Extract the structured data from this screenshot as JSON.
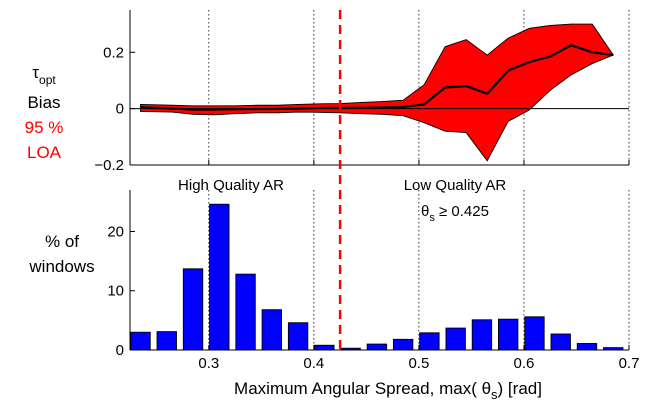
{
  "chart_data": [
    {
      "type": "line",
      "panel": "top",
      "ylabel_lines": [
        {
          "text": "τ",
          "sub": "opt",
          "color": "#000000"
        },
        {
          "text": "Bias",
          "color": "#000000"
        },
        {
          "text": "95 %",
          "color": "#ff0000"
        },
        {
          "text": "LOA",
          "color": "#ff0000"
        }
      ],
      "xlim": [
        0.225,
        0.7
      ],
      "ylim": [
        -0.2,
        0.35
      ],
      "yticks": [
        -0.2,
        0,
        0.2
      ],
      "ytick_labels": [
        "−0.2",
        "0",
        "0.2"
      ],
      "xgrid": [
        0.3,
        0.4,
        0.5,
        0.6,
        0.7
      ],
      "zero_line": true,
      "series": [
        {
          "role": "bias",
          "color": "#000000",
          "x": [
            0.235,
            0.265,
            0.285,
            0.305,
            0.325,
            0.345,
            0.365,
            0.385,
            0.405,
            0.425,
            0.445,
            0.465,
            0.485,
            0.505,
            0.525,
            0.545,
            0.565,
            0.585,
            0.605,
            0.625,
            0.645,
            0.665,
            0.685
          ],
          "values": [
            0.005,
            0.0,
            -0.003,
            -0.003,
            -0.002,
            -0.002,
            -0.001,
            0.0,
            0.002,
            0.003,
            0.003,
            0.004,
            0.006,
            0.015,
            0.075,
            0.08,
            0.053,
            0.135,
            0.165,
            0.185,
            0.225,
            0.2,
            0.19
          ]
        },
        {
          "role": "loa_band",
          "color": "#ff0000",
          "x": [
            0.235,
            0.265,
            0.285,
            0.305,
            0.325,
            0.345,
            0.365,
            0.385,
            0.405,
            0.425,
            0.445,
            0.465,
            0.485,
            0.505,
            0.525,
            0.545,
            0.565,
            0.585,
            0.605,
            0.625,
            0.645,
            0.665,
            0.685
          ],
          "upper": [
            0.015,
            0.012,
            0.01,
            0.01,
            0.01,
            0.012,
            0.012,
            0.015,
            0.017,
            0.018,
            0.022,
            0.025,
            0.03,
            0.085,
            0.22,
            0.245,
            0.19,
            0.25,
            0.285,
            0.295,
            0.3,
            0.3,
            0.19
          ],
          "lower": [
            -0.01,
            -0.012,
            -0.02,
            -0.022,
            -0.018,
            -0.015,
            -0.015,
            -0.012,
            -0.013,
            -0.015,
            -0.018,
            -0.02,
            -0.025,
            -0.05,
            -0.08,
            -0.085,
            -0.185,
            -0.045,
            -0.005,
            0.065,
            0.12,
            0.16,
            0.19
          ]
        }
      ],
      "threshold": {
        "x": 0.425,
        "color": "#ff0000",
        "style": "dashed"
      }
    },
    {
      "type": "bar",
      "panel": "bottom",
      "ylabel_lines": [
        "% of",
        "windows"
      ],
      "xlabel": "Maximum Angular Spread, max( θ",
      "xlabel_sub": "s",
      "xlabel_tail": ") [rad]",
      "xlim": [
        0.225,
        0.7
      ],
      "ylim": [
        0,
        27
      ],
      "yticks": [
        0,
        10,
        20
      ],
      "ytick_labels": [
        "0",
        "10",
        "20"
      ],
      "xticks": [
        0.3,
        0.4,
        0.5,
        0.6,
        0.7
      ],
      "xtick_labels": [
        "0.3",
        "0.4",
        "0.5",
        "0.6",
        "0.7"
      ],
      "bar_width": 0.0185,
      "bar_color": "#0000ff",
      "x": [
        0.235,
        0.26,
        0.285,
        0.31,
        0.335,
        0.36,
        0.385,
        0.41,
        0.435,
        0.46,
        0.485,
        0.51,
        0.535,
        0.56,
        0.585,
        0.61,
        0.635,
        0.66,
        0.685
      ],
      "values": [
        3.0,
        3.1,
        13.7,
        24.6,
        12.8,
        6.8,
        4.6,
        0.8,
        0.3,
        1.0,
        1.8,
        2.9,
        3.7,
        5.1,
        5.2,
        5.6,
        2.7,
        1.1,
        0.4
      ],
      "annotations": {
        "left": "High Quality AR",
        "right": "Low Quality AR",
        "rule": {
          "prefix": "θ",
          "sub": "s",
          "suffix": " ≥ 0.425"
        }
      },
      "threshold": {
        "x": 0.425,
        "color": "#ff0000",
        "style": "dashed"
      }
    }
  ]
}
